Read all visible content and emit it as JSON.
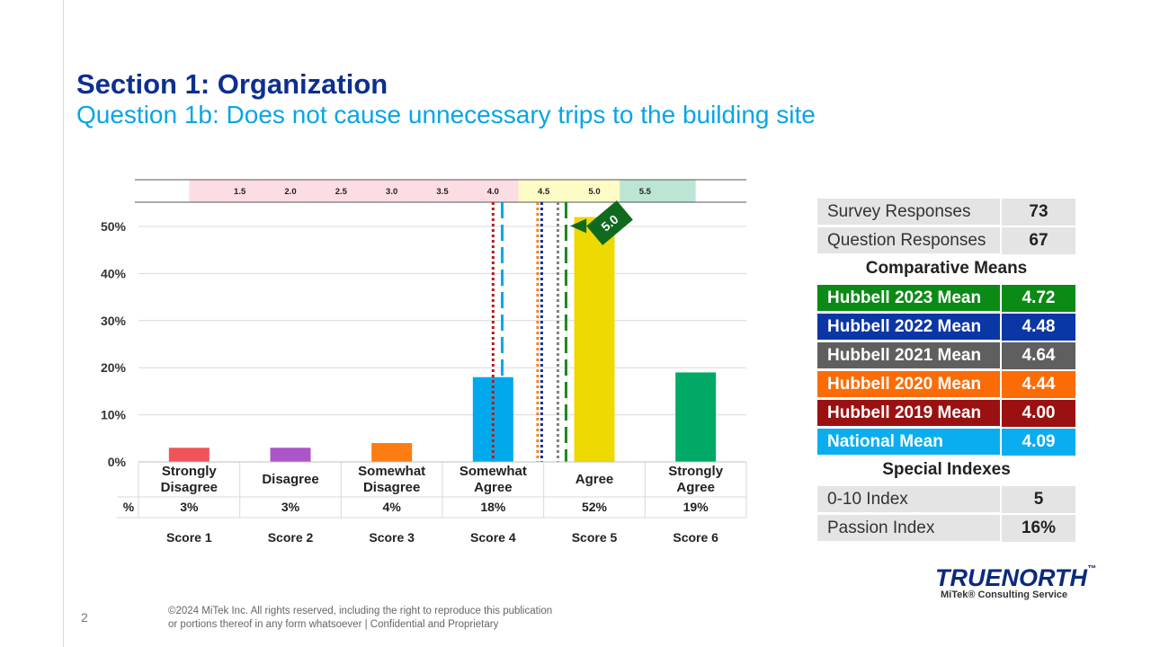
{
  "header": {
    "title": "Section 1: Organization",
    "subtitle": "Question 1b: Does not cause unnecessary trips to the building site"
  },
  "chart_data": {
    "type": "bar",
    "categories": [
      "Strongly\nDisagree",
      "Disagree",
      "Somewhat\nDisagree",
      "Somewhat\nAgree",
      "Agree",
      "Strongly\nAgree"
    ],
    "values": [
      3,
      3,
      4,
      18,
      52,
      19
    ],
    "value_labels": [
      "3%",
      "3%",
      "4%",
      "18%",
      "52%",
      "19%"
    ],
    "percent_row_label": "%",
    "scores": [
      "Score 1",
      "Score 2",
      "Score 3",
      "Score 4",
      "Score 5",
      "Score 6"
    ],
    "bar_colors": [
      "#f0545b",
      "#ab55c7",
      "#fb7d14",
      "#00a9ec",
      "#eed900",
      "#00aa66"
    ],
    "ylim": [
      0,
      50
    ],
    "yticks": [
      0,
      10,
      20,
      30,
      40,
      50
    ],
    "ytick_labels": [
      "0%",
      "10%",
      "20%",
      "30%",
      "40%",
      "50%"
    ],
    "grid": true,
    "scale_ticks": [
      {
        "label": "1.5",
        "value": 1.5
      },
      {
        "label": "2.0",
        "value": 2.0
      },
      {
        "label": "2.5",
        "value": 2.5
      },
      {
        "label": "3.0",
        "value": 3.0
      },
      {
        "label": "3.5",
        "value": 3.5
      },
      {
        "label": "4.0",
        "value": 4.0
      },
      {
        "label": "4.5",
        "value": 4.5
      },
      {
        "label": "5.0",
        "value": 5.0
      },
      {
        "label": "5.5",
        "value": 5.5
      }
    ],
    "scale_bands": [
      {
        "from": 1.0,
        "to": 4.25,
        "color": "#fbdde3"
      },
      {
        "from": 4.25,
        "to": 5.25,
        "color": "#fdfbc6"
      },
      {
        "from": 5.25,
        "to": 6.0,
        "color": "#bde5d3"
      }
    ],
    "mean_lines": [
      {
        "value": 4.0,
        "color": "#b01e23",
        "style": "dotted"
      },
      {
        "value": 4.09,
        "color": "#00a9ec",
        "style": "dashed"
      },
      {
        "value": 4.44,
        "color": "#fb7d14",
        "style": "dotted"
      },
      {
        "value": 4.48,
        "color": "#0b2ea3",
        "style": "dotted"
      },
      {
        "value": 4.64,
        "color": "#808080",
        "style": "dotted"
      },
      {
        "value": 4.72,
        "color": "#1a8a1a",
        "style": "dashed"
      }
    ],
    "marker": {
      "label": "5.0",
      "value": 5.0,
      "color": "#0f6a1f"
    }
  },
  "stats": {
    "rows_top": [
      {
        "label": "Survey Responses",
        "value": "73"
      },
      {
        "label": "Question Responses",
        "value": "67"
      }
    ],
    "comparative_heading": "Comparative Means",
    "means": [
      {
        "label": "Hubbell 2023 Mean",
        "value": "4.72",
        "color": "#0c8a16"
      },
      {
        "label": "Hubbell 2022 Mean",
        "value": "4.48",
        "color": "#0b36a6"
      },
      {
        "label": "Hubbell 2021 Mean",
        "value": "4.64",
        "color": "#5f5f5f"
      },
      {
        "label": "Hubbell 2020 Mean",
        "value": "4.44",
        "color": "#fb6c06"
      },
      {
        "label": "Hubbell 2019 Mean",
        "value": "4.00",
        "color": "#9b1111"
      },
      {
        "label": "National Mean",
        "value": "4.09",
        "color": "#0aaef0"
      }
    ],
    "special_heading": "Special Indexes",
    "rows_bottom": [
      {
        "label": "0-10 Index",
        "value": "5"
      },
      {
        "label": "Passion Index",
        "value": "16%"
      }
    ]
  },
  "footer": {
    "page_number": "2",
    "copyright_line1": "©2024 MiTek Inc. All rights reserved, including the right to reproduce this publication",
    "copyright_line2": "or portions thereof in any form whatsoever | Confidential and Proprietary",
    "logo_main": "TRUENORTH",
    "logo_tm": "™",
    "logo_sub": "MiTek® Consulting Service"
  }
}
